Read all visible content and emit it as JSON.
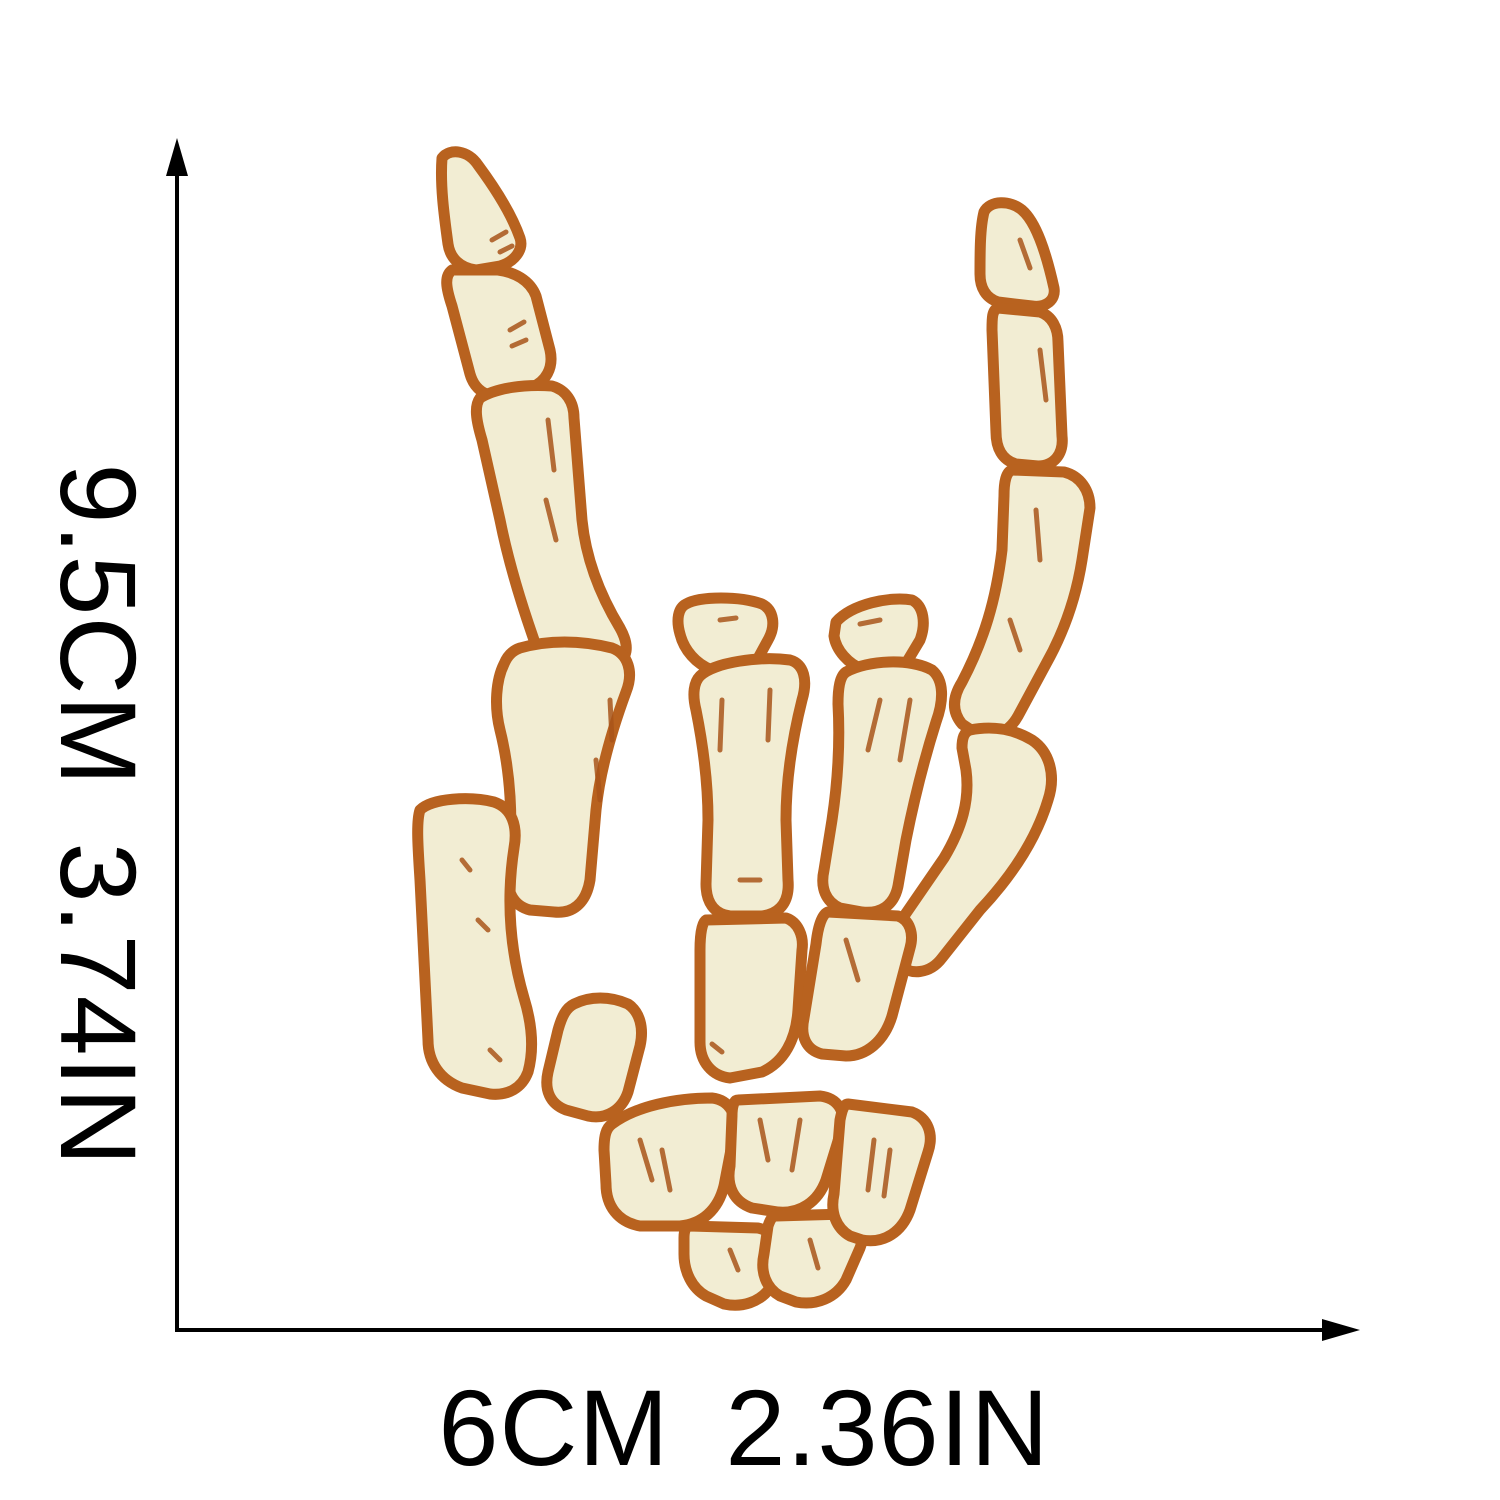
{
  "dimensions": {
    "height_cm": "9.5CM",
    "height_in": "3.74IN",
    "width_cm": "6CM",
    "width_in": "2.36IN"
  },
  "colors": {
    "bone_fill": "#F2EDD3",
    "outline": "#B8621F",
    "shadow_marks": "#A9551A",
    "axis": "#000000",
    "background": "#FFFFFF"
  },
  "subject": "skeleton-hand-patch-icon"
}
